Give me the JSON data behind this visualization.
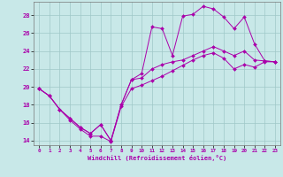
{
  "xlabel": "Windchill (Refroidissement éolien,°C)",
  "ylabel": "",
  "xlim": [
    -0.5,
    23.5
  ],
  "ylim": [
    13.5,
    29.5
  ],
  "yticks": [
    14,
    16,
    18,
    20,
    22,
    24,
    26,
    28
  ],
  "xticks": [
    0,
    1,
    2,
    3,
    4,
    5,
    6,
    7,
    8,
    9,
    10,
    11,
    12,
    13,
    14,
    15,
    16,
    17,
    18,
    19,
    20,
    21,
    22,
    23
  ],
  "bg_color": "#c8e8e8",
  "line_color": "#aa00aa",
  "grid_color": "#9fc8c8",
  "series": [
    [
      19.8,
      19.0,
      17.5,
      16.5,
      15.5,
      14.8,
      15.8,
      14.0,
      18.0,
      20.8,
      21.5,
      26.7,
      26.5,
      23.5,
      27.9,
      28.1,
      29.0,
      28.7,
      27.8,
      26.5,
      27.8,
      24.8,
      22.9,
      22.8
    ],
    [
      19.8,
      19.0,
      17.5,
      16.3,
      15.3,
      14.5,
      14.5,
      13.9,
      17.8,
      19.8,
      20.2,
      20.7,
      21.2,
      21.8,
      22.4,
      23.0,
      23.5,
      23.8,
      23.2,
      22.0,
      22.5,
      22.2,
      22.8,
      22.8
    ],
    [
      19.8,
      19.0,
      17.5,
      16.5,
      15.5,
      14.8,
      15.8,
      14.0,
      18.0,
      20.8,
      21.0,
      22.0,
      22.5,
      22.8,
      23.0,
      23.5,
      24.0,
      24.5,
      24.0,
      23.5,
      24.0,
      23.0,
      22.9,
      22.8
    ]
  ]
}
